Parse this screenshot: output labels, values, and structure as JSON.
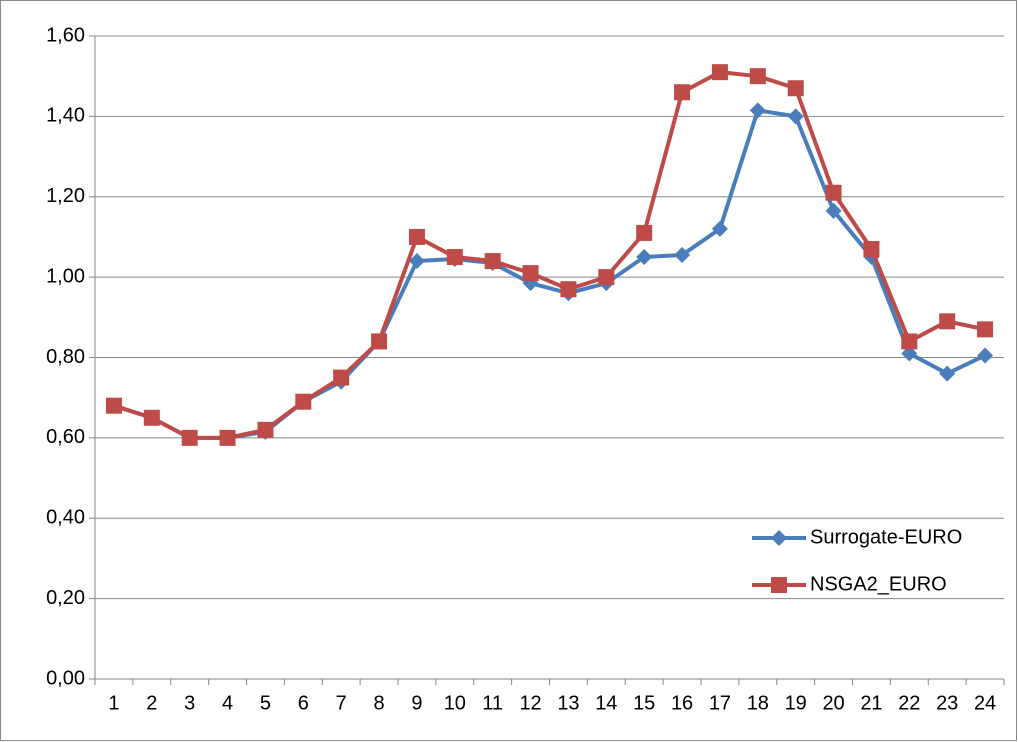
{
  "chart_data": {
    "type": "line",
    "categories": [
      "1",
      "2",
      "3",
      "4",
      "5",
      "6",
      "7",
      "8",
      "9",
      "10",
      "11",
      "12",
      "13",
      "14",
      "15",
      "16",
      "17",
      "18",
      "19",
      "20",
      "21",
      "22",
      "23",
      "24"
    ],
    "series": [
      {
        "name": "Surrogate-EURO",
        "color": "#4a7ebb",
        "marker": "diamond",
        "values": [
          0.68,
          0.65,
          0.6,
          0.6,
          0.615,
          0.69,
          0.74,
          0.84,
          1.04,
          1.045,
          1.035,
          0.985,
          0.96,
          0.985,
          1.05,
          1.055,
          1.12,
          1.415,
          1.4,
          1.165,
          1.05,
          0.81,
          0.76,
          0.805
        ]
      },
      {
        "name": "NSGA2_EURO",
        "color": "#be4b48",
        "marker": "square",
        "values": [
          0.68,
          0.65,
          0.6,
          0.6,
          0.62,
          0.69,
          0.75,
          0.84,
          1.1,
          1.05,
          1.04,
          1.01,
          0.97,
          1.0,
          1.11,
          1.46,
          1.51,
          1.5,
          1.47,
          1.21,
          1.07,
          0.84,
          0.89,
          0.87
        ]
      }
    ],
    "ylim": [
      0,
      1.6
    ],
    "yticks": [
      {
        "value": 0,
        "label": "0,00"
      },
      {
        "value": 0.2,
        "label": "0,20"
      },
      {
        "value": 0.4,
        "label": "0,40"
      },
      {
        "value": 0.6,
        "label": "0,60"
      },
      {
        "value": 0.8,
        "label": "0,80"
      },
      {
        "value": 1.0,
        "label": "1,00"
      },
      {
        "value": 1.2,
        "label": "1,20"
      },
      {
        "value": 1.4,
        "label": "1,40"
      },
      {
        "value": 1.6,
        "label": "1,60"
      }
    ],
    "grid": true,
    "legend": "right"
  }
}
